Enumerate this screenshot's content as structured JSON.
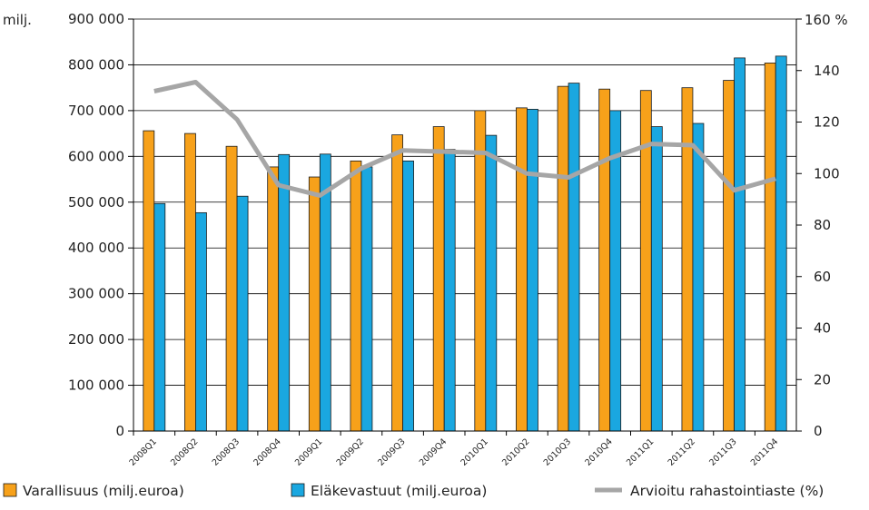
{
  "chart_data": {
    "type": "bar",
    "y_unit_left": "milj.",
    "y_unit_right": "160 %",
    "categories": [
      "2008Q1",
      "2008Q2",
      "2008Q3",
      "2008Q4",
      "2009Q1",
      "2009Q2",
      "2009Q3",
      "2009Q4",
      "2010Q1",
      "2010Q2",
      "2010Q3",
      "2010Q4",
      "2011Q1",
      "2011Q2",
      "2011Q3",
      "2011Q4"
    ],
    "ylim": [
      0,
      900000
    ],
    "y2lim": [
      0,
      160
    ],
    "yticks": [
      "0",
      "100 000",
      "200 000",
      "300 000",
      "400 000",
      "500 000",
      "600 000",
      "700 000",
      "800 000",
      "900 000"
    ],
    "y2ticks": [
      "0",
      "20",
      "40",
      "60",
      "80",
      "100",
      "120",
      "140"
    ],
    "grid": true,
    "legend_position": "bottom",
    "series": [
      {
        "name": "Varallisuus (milj.euroa)",
        "type": "bar",
        "axis": "left",
        "color": "#f7a11a",
        "values": [
          656000,
          650000,
          622000,
          577000,
          555000,
          590000,
          647000,
          665000,
          700000,
          706000,
          753000,
          747000,
          744000,
          750000,
          766000,
          804000
        ]
      },
      {
        "name": "Eläkevastuut (milj.euroa)",
        "type": "bar",
        "axis": "left",
        "color": "#1aa7e0",
        "values": [
          497000,
          477000,
          513000,
          604000,
          605000,
          577000,
          590000,
          615000,
          646000,
          703000,
          760000,
          700000,
          665000,
          672000,
          815000,
          819000
        ]
      },
      {
        "name": "Arvioitu rahastointiaste (%)",
        "type": "line",
        "axis": "right",
        "color": "#a6a6a6",
        "values": [
          132,
          135.5,
          121,
          95.5,
          91.5,
          102,
          109,
          108.5,
          108,
          100,
          98.5,
          106,
          111.5,
          111,
          93.5,
          98
        ]
      }
    ]
  }
}
